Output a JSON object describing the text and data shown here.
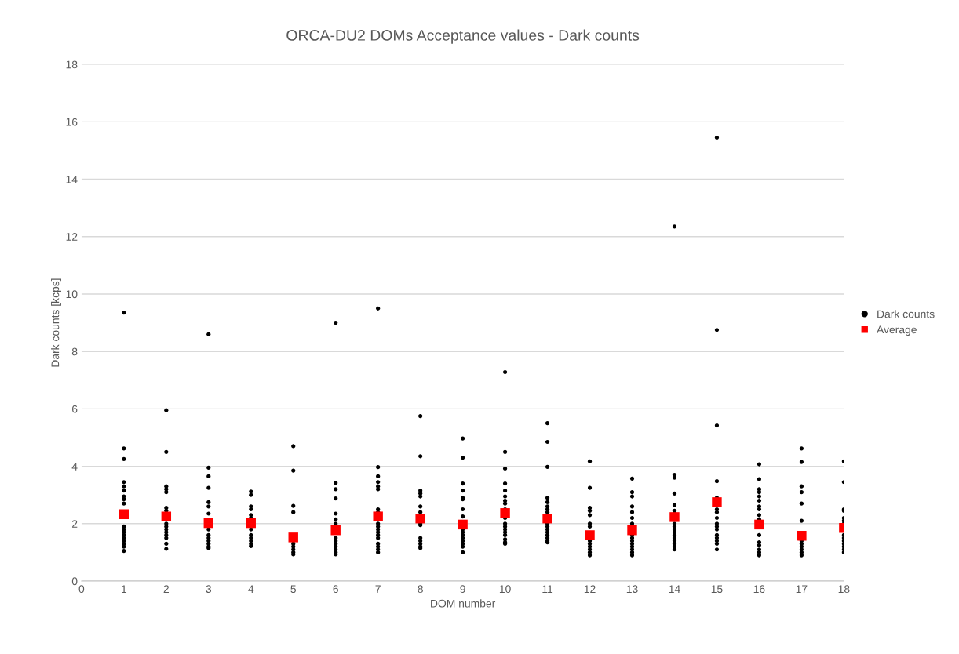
{
  "chart_data": {
    "type": "scatter",
    "title": "ORCA-DU2 DOMs Acceptance values - Dark counts",
    "xlabel": "DOM number",
    "ylabel": "Dark counts [kcps]",
    "xlim": [
      0,
      18
    ],
    "xticks": [
      0,
      1,
      2,
      3,
      4,
      5,
      6,
      7,
      8,
      9,
      10,
      11,
      12,
      13,
      14,
      15,
      16,
      17,
      18
    ],
    "ylim": [
      0,
      18
    ],
    "yticks": [
      0,
      2,
      4,
      6,
      8,
      10,
      12,
      14,
      16,
      18
    ],
    "grid": "y",
    "legend": "right",
    "series": [
      {
        "name": "Dark counts",
        "color": "#000000",
        "marker": "circle",
        "x": [
          1,
          1,
          1,
          1,
          1,
          1,
          1,
          1,
          1,
          1,
          1,
          1,
          1,
          1,
          1,
          1,
          1,
          1,
          2,
          2,
          2,
          2,
          2,
          2,
          2,
          2,
          2,
          2,
          2,
          2,
          2,
          2,
          2,
          3,
          3,
          3,
          3,
          3,
          3,
          3,
          3,
          3,
          3,
          3,
          3,
          3,
          3,
          3,
          4,
          4,
          4,
          4,
          4,
          4,
          4,
          4,
          4,
          4,
          4,
          4,
          5,
          5,
          5,
          5,
          5,
          5,
          5,
          5,
          5,
          5,
          6,
          6,
          6,
          6,
          6,
          6,
          6,
          6,
          6,
          6,
          6,
          6,
          6,
          6,
          6,
          7,
          7,
          7,
          7,
          7,
          7,
          7,
          7,
          7,
          7,
          7,
          7,
          7,
          7,
          7,
          7,
          7,
          7,
          8,
          8,
          8,
          8,
          8,
          8,
          8,
          8,
          8,
          8,
          8,
          8,
          8,
          8,
          9,
          9,
          9,
          9,
          9,
          9,
          9,
          9,
          9,
          9,
          9,
          9,
          9,
          9,
          9,
          9,
          10,
          10,
          10,
          10,
          10,
          10,
          10,
          10,
          10,
          10,
          10,
          10,
          10,
          10,
          10,
          10,
          10,
          10,
          11,
          11,
          11,
          11,
          11,
          11,
          11,
          11,
          11,
          11,
          11,
          11,
          11,
          11,
          11,
          11,
          12,
          12,
          12,
          12,
          12,
          12,
          12,
          12,
          12,
          12,
          12,
          12,
          12,
          13,
          13,
          13,
          13,
          13,
          13,
          13,
          13,
          13,
          13,
          13,
          13,
          13,
          13,
          13,
          13,
          14,
          14,
          14,
          14,
          14,
          14,
          14,
          14,
          14,
          14,
          14,
          14,
          14,
          14,
          14,
          14,
          14,
          15,
          15,
          15,
          15,
          15,
          15,
          15,
          15,
          15,
          15,
          15,
          15,
          15,
          15,
          15,
          15,
          16,
          16,
          16,
          16,
          16,
          16,
          16,
          16,
          16,
          16,
          16,
          16,
          16,
          16,
          16,
          16,
          17,
          17,
          17,
          17,
          17,
          17,
          17,
          17,
          17,
          17,
          17,
          17,
          18,
          18,
          18,
          18,
          18,
          18,
          18,
          18,
          18,
          18,
          18,
          18,
          18,
          18
        ],
        "values": [
          9.35,
          4.62,
          4.25,
          3.45,
          3.3,
          3.15,
          2.95,
          2.85,
          2.7,
          1.9,
          1.8,
          1.7,
          1.6,
          1.5,
          1.4,
          1.3,
          1.2,
          1.05,
          5.95,
          4.5,
          3.3,
          3.2,
          3.1,
          2.55,
          2.45,
          2.0,
          1.9,
          1.8,
          1.7,
          1.6,
          1.5,
          1.3,
          1.12,
          8.6,
          3.95,
          3.65,
          3.25,
          2.75,
          2.6,
          2.35,
          1.9,
          1.8,
          1.6,
          1.5,
          1.4,
          1.3,
          1.2,
          1.15,
          3.12,
          3.0,
          2.6,
          2.5,
          2.3,
          2.2,
          1.8,
          1.6,
          1.5,
          1.4,
          1.3,
          1.22,
          4.7,
          3.85,
          2.62,
          2.4,
          1.4,
          1.3,
          1.2,
          1.1,
          1.0,
          0.93,
          9.0,
          3.42,
          3.2,
          2.88,
          2.35,
          2.15,
          2.0,
          1.9,
          1.5,
          1.4,
          1.3,
          1.2,
          1.1,
          1.0,
          0.93,
          9.5,
          3.97,
          3.65,
          3.45,
          3.3,
          3.2,
          2.5,
          2.4,
          2.0,
          1.9,
          1.8,
          1.7,
          1.6,
          1.5,
          1.3,
          1.2,
          1.1,
          1.0,
          5.75,
          4.35,
          3.15,
          3.05,
          2.95,
          2.6,
          2.4,
          2.0,
          1.95,
          1.5,
          1.4,
          1.3,
          1.2,
          1.15,
          4.97,
          4.3,
          3.4,
          3.15,
          2.9,
          2.85,
          2.5,
          2.25,
          1.8,
          1.7,
          1.6,
          1.5,
          1.4,
          1.3,
          1.2,
          1.0,
          7.28,
          4.5,
          3.92,
          3.4,
          3.15,
          2.95,
          2.8,
          2.7,
          2.5,
          2.2,
          2.0,
          1.9,
          1.8,
          1.7,
          1.6,
          1.45,
          1.35,
          1.3,
          5.5,
          4.85,
          3.98,
          2.9,
          2.75,
          2.6,
          2.5,
          2.4,
          2.0,
          1.9,
          1.8,
          1.7,
          1.6,
          1.5,
          1.4,
          1.35,
          4.17,
          3.25,
          2.55,
          2.45,
          2.3,
          2.0,
          1.9,
          1.4,
          1.3,
          1.2,
          1.1,
          1.0,
          0.9,
          3.57,
          3.1,
          2.95,
          2.6,
          2.4,
          2.2,
          2.0,
          1.9,
          1.6,
          1.5,
          1.4,
          1.3,
          1.2,
          1.1,
          1.0,
          0.9,
          12.35,
          3.7,
          3.6,
          3.05,
          2.65,
          2.45,
          2.35,
          2.0,
          1.9,
          1.8,
          1.7,
          1.6,
          1.5,
          1.4,
          1.3,
          1.2,
          1.1,
          15.45,
          8.75,
          5.42,
          3.48,
          2.9,
          2.5,
          2.4,
          2.2,
          2.0,
          1.9,
          1.8,
          1.6,
          1.5,
          1.4,
          1.3,
          1.1,
          4.07,
          3.55,
          3.2,
          3.1,
          2.95,
          2.8,
          2.6,
          2.5,
          2.3,
          2.15,
          1.6,
          1.35,
          1.25,
          1.1,
          1.0,
          0.9,
          4.62,
          4.15,
          3.3,
          3.1,
          2.7,
          2.1,
          1.4,
          1.3,
          1.2,
          1.1,
          1.0,
          0.9,
          4.17,
          3.45,
          2.5,
          2.45,
          2.2,
          2.1,
          2.0,
          1.6,
          1.5,
          1.4,
          1.3,
          1.2,
          1.1,
          1.0
        ]
      },
      {
        "name": "Average",
        "color": "#ff0000",
        "marker": "square",
        "x": [
          1,
          2,
          3,
          4,
          5,
          6,
          7,
          8,
          9,
          10,
          11,
          12,
          13,
          14,
          15,
          16,
          17,
          18
        ],
        "values": [
          2.33,
          2.25,
          2.02,
          2.02,
          1.52,
          1.77,
          2.25,
          2.18,
          1.97,
          2.37,
          2.18,
          1.6,
          1.77,
          2.23,
          2.75,
          1.97,
          1.58,
          1.85
        ]
      }
    ]
  }
}
